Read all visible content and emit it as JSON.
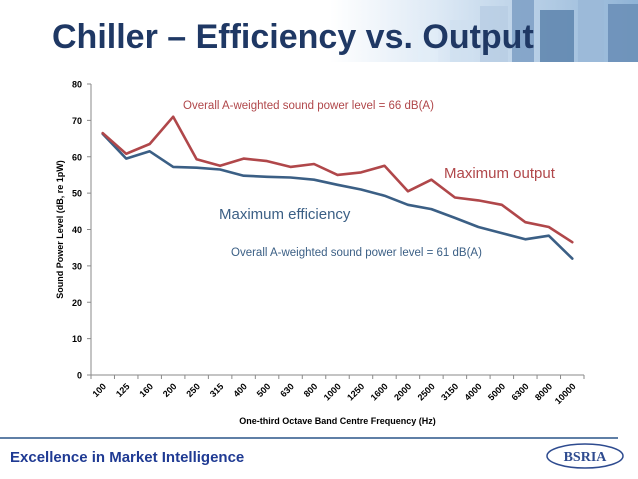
{
  "slide": {
    "title": "Chiller – Efficiency vs. Output",
    "footer": "Excellence in Market Intelligence",
    "logo_text": "BSRIA"
  },
  "colors": {
    "title": "#1f3864",
    "max_output": "#b0474a",
    "max_efficiency": "#3b5f85",
    "footer": "#1f3a93",
    "rule": "#5f7fa6"
  },
  "chart_data": {
    "type": "line",
    "xlabel": "One-third Octave Band Centre Frequency (Hz)",
    "ylabel": "Sound Power Level (dB, re 1pW)",
    "ylim": [
      0,
      80
    ],
    "yticks": [
      0,
      10,
      20,
      30,
      40,
      50,
      60,
      70,
      80
    ],
    "grid": false,
    "categories": [
      "100",
      "125",
      "160",
      "200",
      "250",
      "315",
      "400",
      "500",
      "630",
      "800",
      "1000",
      "1250",
      "1600",
      "2000",
      "2500",
      "3150",
      "4000",
      "5000",
      "6300",
      "8000",
      "10000"
    ],
    "series": [
      {
        "name": "Maximum output",
        "color": "#b0474a",
        "values": [
          66.5,
          60.8,
          63.5,
          71.0,
          59.3,
          57.5,
          59.5,
          58.8,
          57.2,
          58.0,
          55.0,
          55.7,
          57.5,
          50.5,
          53.7,
          48.8,
          48.0,
          46.8,
          42.0,
          40.7,
          36.5
        ]
      },
      {
        "name": "Maximum efficiency",
        "color": "#3b5f85",
        "values": [
          66.3,
          59.5,
          61.5,
          57.2,
          57.0,
          56.5,
          54.8,
          54.5,
          54.3,
          53.7,
          52.3,
          51.0,
          49.3,
          46.8,
          45.6,
          43.2,
          40.7,
          39.0,
          37.3,
          38.3,
          32.0
        ]
      }
    ],
    "annotations": {
      "output_overall": "Overall A-weighted sound power level = 66 dB(A)",
      "efficiency_overall": "Overall A-weighted sound power level = 61 dB(A)",
      "output_label": "Maximum output",
      "efficiency_label": "Maximum efficiency"
    }
  }
}
